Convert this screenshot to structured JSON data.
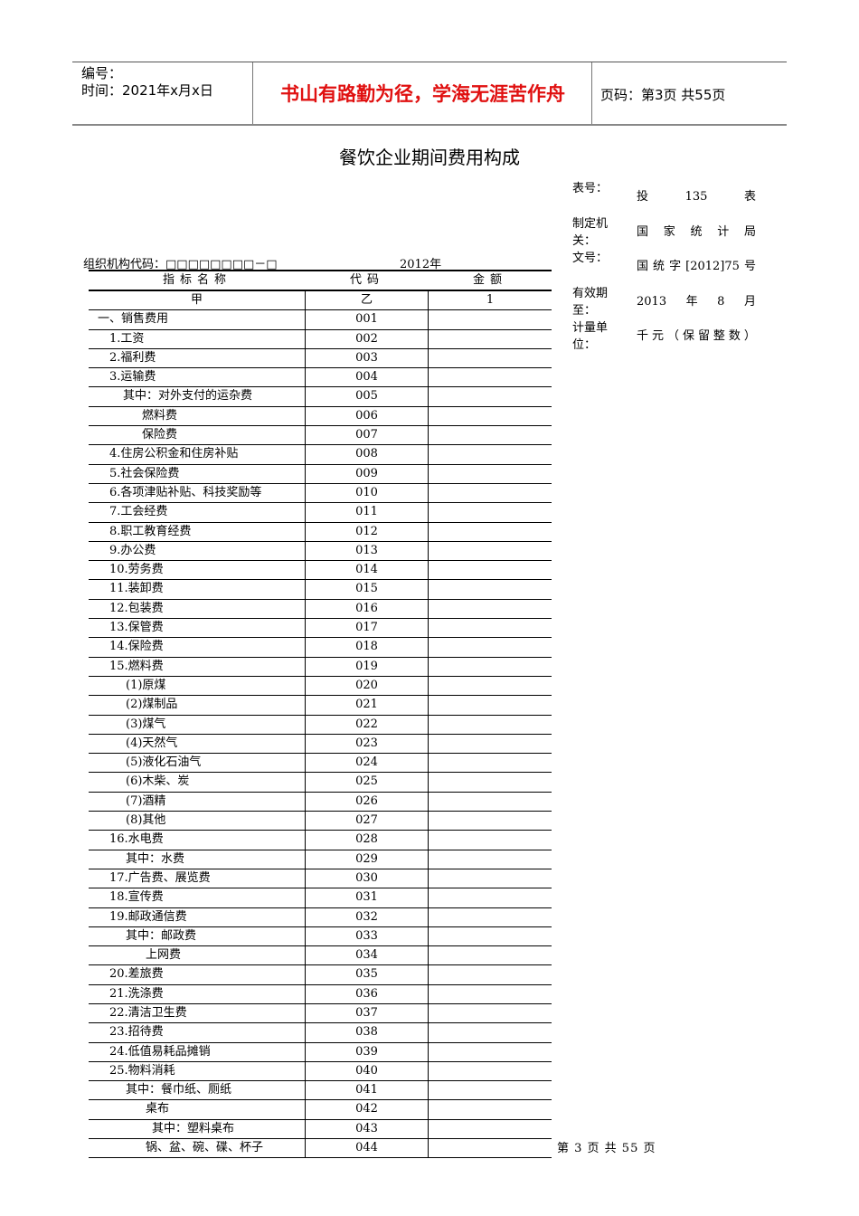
{
  "header": {
    "number_label": "编号：",
    "time_label": "时间：2021年x月x日",
    "motto": "书山有路勤为径，学海无涯苦作舟",
    "page_label": "页码：第3页  共55页",
    "motto_color": "#e01010"
  },
  "title": "餐饮企业期间费用构成",
  "meta": [
    {
      "k": "表号：",
      "v": [
        "投",
        "135",
        "表"
      ]
    },
    {
      "k": "制定机关：",
      "v": [
        "国",
        "家",
        "统",
        "计",
        "局"
      ]
    },
    {
      "k": "文号：",
      "v": [
        "国",
        "统",
        "字",
        "[2012]75",
        "号"
      ]
    },
    {
      "k": "有效期至：",
      "v": [
        "2013",
        "年",
        "8",
        "月"
      ]
    },
    {
      "k": "计量单位：",
      "v": [
        "千",
        "元",
        "（",
        "保",
        "留",
        "整",
        "数",
        "）"
      ]
    }
  ],
  "org_code": "组织机构代码：□□□□□□□□－□",
  "year": "2012年",
  "table": {
    "headers": [
      "指标名称",
      "代码",
      "金额"
    ],
    "subheaders": [
      "甲",
      "乙",
      "1"
    ],
    "rows": [
      {
        "name": "一、销售费用",
        "code": "001",
        "indent": 10
      },
      {
        "name": "1.工资",
        "code": "002",
        "indent": 23
      },
      {
        "name": "2.福利费",
        "code": "003",
        "indent": 23
      },
      {
        "name": "3.运输费",
        "code": "004",
        "indent": 23
      },
      {
        "name": "其中：对外支付的运杂费",
        "code": "005",
        "indent": 38
      },
      {
        "name": "燃料费",
        "code": "006",
        "indent": 59
      },
      {
        "name": "保险费",
        "code": "007",
        "indent": 59
      },
      {
        "name": "4.住房公积金和住房补贴",
        "code": "008",
        "indent": 23
      },
      {
        "name": "5.社会保险费",
        "code": "009",
        "indent": 23
      },
      {
        "name": "6.各项津贴补贴、科技奖励等",
        "code": "010",
        "indent": 23
      },
      {
        "name": "7.工会经费",
        "code": "011",
        "indent": 23
      },
      {
        "name": "8.职工教育经费",
        "code": "012",
        "indent": 23
      },
      {
        "name": "9.办公费",
        "code": "013",
        "indent": 23
      },
      {
        "name": "10.劳务费",
        "code": "014",
        "indent": 23
      },
      {
        "name": "11.装卸费",
        "code": "015",
        "indent": 23
      },
      {
        "name": "12.包装费",
        "code": "016",
        "indent": 23
      },
      {
        "name": "13.保管费",
        "code": "017",
        "indent": 23
      },
      {
        "name": "14.保险费",
        "code": "018",
        "indent": 23
      },
      {
        "name": "15.燃料费",
        "code": "019",
        "indent": 23
      },
      {
        "name": "(1)原煤",
        "code": "020",
        "indent": 41
      },
      {
        "name": "(2)煤制品",
        "code": "021",
        "indent": 41
      },
      {
        "name": "(3)煤气",
        "code": "022",
        "indent": 41
      },
      {
        "name": "(4)天然气",
        "code": "023",
        "indent": 41
      },
      {
        "name": "(5)液化石油气",
        "code": "024",
        "indent": 41
      },
      {
        "name": "(6)木柴、炭",
        "code": "025",
        "indent": 41
      },
      {
        "name": "(7)酒精",
        "code": "026",
        "indent": 41
      },
      {
        "name": "(8)其他",
        "code": "027",
        "indent": 41
      },
      {
        "name": "16.水电费",
        "code": "028",
        "indent": 23
      },
      {
        "name": "其中：水费",
        "code": "029",
        "indent": 41
      },
      {
        "name": "17.广告费、展览费",
        "code": "030",
        "indent": 23
      },
      {
        "name": "18.宣传费",
        "code": "031",
        "indent": 23
      },
      {
        "name": "19.邮政通信费",
        "code": "032",
        "indent": 23
      },
      {
        "name": "其中：邮政费",
        "code": "033",
        "indent": 41
      },
      {
        "name": "上网费",
        "code": "034",
        "indent": 63
      },
      {
        "name": "20.差旅费",
        "code": "035",
        "indent": 23
      },
      {
        "name": "21.洗涤费",
        "code": "036",
        "indent": 23
      },
      {
        "name": "22.清洁卫生费",
        "code": "037",
        "indent": 23
      },
      {
        "name": "23.招待费",
        "code": "038",
        "indent": 23
      },
      {
        "name": "24.低值易耗品摊销",
        "code": "039",
        "indent": 23
      },
      {
        "name": "25.物料消耗",
        "code": "040",
        "indent": 23
      },
      {
        "name": "其中：餐巾纸、厕纸",
        "code": "041",
        "indent": 41
      },
      {
        "name": "桌布",
        "code": "042",
        "indent": 63
      },
      {
        "name": "其中：塑料桌布",
        "code": "043",
        "indent": 70
      },
      {
        "name": "锅、盆、碗、碟、杯子",
        "code": "044",
        "indent": 63
      }
    ]
  },
  "footer": "第 3 页 共 55 页"
}
